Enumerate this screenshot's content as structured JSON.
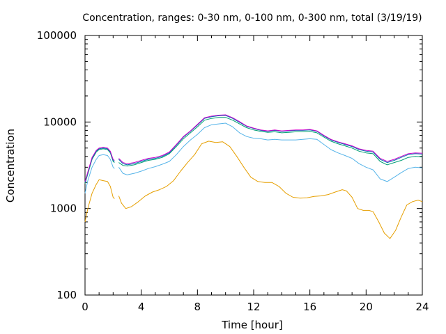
{
  "chart_data": {
    "type": "line",
    "title": "Concentration, ranges: 0-30 nm, 0-100 nm, 0-300 nm, total (3/19/19)",
    "xlabel": "Time [hour]",
    "ylabel": "Concentration",
    "xlim": [
      0,
      24
    ],
    "ylim": [
      100,
      100000
    ],
    "y_scale": "log",
    "grid": false,
    "legend": "none",
    "x_ticks": [
      "0",
      "4",
      "8",
      "12",
      "16",
      "20",
      "24"
    ],
    "y_ticks": [
      "100",
      "1000",
      "10000",
      "100000"
    ],
    "series": [
      {
        "color": "#e69f00",
        "points": [
          [
            0,
            700
          ],
          [
            0.2,
            1000
          ],
          [
            0.5,
            1500
          ],
          [
            0.8,
            1900
          ],
          [
            1.0,
            2150
          ],
          [
            1.3,
            2100
          ],
          [
            1.6,
            2050
          ],
          [
            1.8,
            1800
          ],
          [
            2.0,
            1350
          ],
          [
            2.1,
            1300
          ],
          null,
          [
            2.4,
            1400
          ],
          [
            2.6,
            1150
          ],
          [
            2.9,
            1000
          ],
          [
            3.3,
            1050
          ],
          [
            3.8,
            1200
          ],
          [
            4.3,
            1400
          ],
          [
            4.8,
            1550
          ],
          [
            5.3,
            1650
          ],
          [
            5.8,
            1800
          ],
          [
            6.3,
            2100
          ],
          [
            6.8,
            2700
          ],
          [
            7.3,
            3400
          ],
          [
            7.8,
            4200
          ],
          [
            8.3,
            5600
          ],
          [
            8.8,
            6000
          ],
          [
            9.3,
            5800
          ],
          [
            9.8,
            5900
          ],
          [
            10.3,
            5200
          ],
          [
            10.8,
            4000
          ],
          [
            11.3,
            3000
          ],
          [
            11.8,
            2300
          ],
          [
            12.3,
            2050
          ],
          [
            12.8,
            2000
          ],
          [
            13.3,
            2000
          ],
          [
            13.8,
            1800
          ],
          [
            14.3,
            1500
          ],
          [
            14.8,
            1350
          ],
          [
            15.3,
            1320
          ],
          [
            15.8,
            1330
          ],
          [
            16.3,
            1380
          ],
          [
            16.8,
            1400
          ],
          [
            17.3,
            1450
          ],
          [
            17.8,
            1550
          ],
          [
            18.3,
            1650
          ],
          [
            18.6,
            1600
          ],
          [
            19.0,
            1350
          ],
          [
            19.4,
            1000
          ],
          [
            19.8,
            950
          ],
          [
            20.2,
            950
          ],
          [
            20.5,
            920
          ],
          [
            20.9,
            700
          ],
          [
            21.3,
            520
          ],
          [
            21.7,
            450
          ],
          [
            22.1,
            560
          ],
          [
            22.5,
            800
          ],
          [
            22.9,
            1100
          ],
          [
            23.3,
            1200
          ],
          [
            23.7,
            1250
          ],
          [
            24,
            1200
          ]
        ]
      },
      {
        "color": "#56b4e9",
        "points": [
          [
            0,
            1500
          ],
          [
            0.2,
            2100
          ],
          [
            0.5,
            3000
          ],
          [
            0.8,
            3700
          ],
          [
            1.0,
            4100
          ],
          [
            1.3,
            4200
          ],
          [
            1.6,
            4100
          ],
          [
            1.8,
            3700
          ],
          [
            2.0,
            3000
          ],
          [
            2.1,
            2900
          ],
          null,
          [
            2.4,
            3000
          ],
          [
            2.7,
            2550
          ],
          [
            3.0,
            2450
          ],
          [
            3.5,
            2550
          ],
          [
            4.0,
            2700
          ],
          [
            4.5,
            2900
          ],
          [
            5.0,
            3050
          ],
          [
            5.5,
            3250
          ],
          [
            6.0,
            3500
          ],
          [
            6.5,
            4200
          ],
          [
            7.0,
            5200
          ],
          [
            7.5,
            6200
          ],
          [
            8.0,
            7200
          ],
          [
            8.5,
            8600
          ],
          [
            9.0,
            9300
          ],
          [
            9.5,
            9500
          ],
          [
            10.0,
            9700
          ],
          [
            10.5,
            8800
          ],
          [
            11.0,
            7500
          ],
          [
            11.5,
            6800
          ],
          [
            12.0,
            6500
          ],
          [
            12.5,
            6400
          ],
          [
            13.0,
            6200
          ],
          [
            13.5,
            6300
          ],
          [
            14.0,
            6200
          ],
          [
            14.5,
            6200
          ],
          [
            15.0,
            6200
          ],
          [
            15.5,
            6300
          ],
          [
            16.0,
            6400
          ],
          [
            16.5,
            6300
          ],
          [
            17.0,
            5500
          ],
          [
            17.5,
            4800
          ],
          [
            18.0,
            4400
          ],
          [
            18.5,
            4100
          ],
          [
            19.0,
            3800
          ],
          [
            19.5,
            3300
          ],
          [
            20.0,
            3000
          ],
          [
            20.5,
            2800
          ],
          [
            21.0,
            2200
          ],
          [
            21.5,
            2050
          ],
          [
            22.0,
            2300
          ],
          [
            22.5,
            2600
          ],
          [
            23.0,
            2900
          ],
          [
            23.5,
            3000
          ],
          [
            24,
            2950
          ]
        ]
      },
      {
        "color": "#009e73",
        "points": [
          [
            0,
            1950
          ],
          [
            0.2,
            2500
          ],
          [
            0.5,
            3700
          ],
          [
            0.8,
            4500
          ],
          [
            1.0,
            4800
          ],
          [
            1.3,
            4900
          ],
          [
            1.6,
            4800
          ],
          [
            1.8,
            4400
          ],
          [
            2.0,
            3500
          ],
          [
            2.1,
            3400
          ],
          null,
          [
            2.4,
            3400
          ],
          [
            2.7,
            3150
          ],
          [
            3.0,
            3100
          ],
          [
            3.5,
            3200
          ],
          [
            4.0,
            3400
          ],
          [
            4.5,
            3600
          ],
          [
            5.0,
            3700
          ],
          [
            5.5,
            3900
          ],
          [
            6.0,
            4300
          ],
          [
            6.5,
            5200
          ],
          [
            7.0,
            6400
          ],
          [
            7.5,
            7500
          ],
          [
            8.0,
            8800
          ],
          [
            8.5,
            10500
          ],
          [
            9.0,
            11000
          ],
          [
            9.5,
            11300
          ],
          [
            10.0,
            11300
          ],
          [
            10.5,
            10500
          ],
          [
            11.0,
            9500
          ],
          [
            11.5,
            8600
          ],
          [
            12.0,
            8100
          ],
          [
            12.5,
            7800
          ],
          [
            13.0,
            7600
          ],
          [
            13.5,
            7700
          ],
          [
            14.0,
            7500
          ],
          [
            14.5,
            7600
          ],
          [
            15.0,
            7700
          ],
          [
            15.5,
            7700
          ],
          [
            16.0,
            7800
          ],
          [
            16.5,
            7500
          ],
          [
            17.0,
            6700
          ],
          [
            17.5,
            6000
          ],
          [
            18.0,
            5600
          ],
          [
            18.5,
            5300
          ],
          [
            19.0,
            5000
          ],
          [
            19.5,
            4600
          ],
          [
            20.0,
            4400
          ],
          [
            20.5,
            4300
          ],
          [
            21.0,
            3500
          ],
          [
            21.5,
            3200
          ],
          [
            22.0,
            3400
          ],
          [
            22.5,
            3600
          ],
          [
            23.0,
            3900
          ],
          [
            23.5,
            4000
          ],
          [
            24,
            3950
          ]
        ]
      },
      {
        "color": "#0072b2",
        "points": [
          [
            0,
            2000
          ],
          [
            0.2,
            2600
          ],
          [
            0.5,
            3800
          ],
          [
            0.8,
            4600
          ],
          [
            1.0,
            4900
          ],
          [
            1.3,
            5000
          ],
          [
            1.6,
            4900
          ],
          [
            1.8,
            4500
          ],
          [
            2.0,
            3600
          ],
          [
            2.1,
            3500
          ],
          null,
          [
            2.4,
            3700
          ],
          [
            2.7,
            3300
          ],
          [
            3.0,
            3200
          ],
          [
            3.5,
            3300
          ],
          [
            4.0,
            3500
          ],
          [
            4.5,
            3700
          ],
          [
            5.0,
            3800
          ],
          [
            5.5,
            4000
          ],
          [
            6.0,
            4400
          ],
          [
            6.5,
            5400
          ],
          [
            7.0,
            6700
          ],
          [
            7.5,
            7800
          ],
          [
            8.0,
            9200
          ],
          [
            8.5,
            11000
          ],
          [
            9.0,
            11500
          ],
          [
            9.5,
            11800
          ],
          [
            10.0,
            11900
          ],
          [
            10.5,
            11000
          ],
          [
            11.0,
            9900
          ],
          [
            11.5,
            8900
          ],
          [
            12.0,
            8400
          ],
          [
            12.5,
            8000
          ],
          [
            13.0,
            7800
          ],
          [
            13.5,
            8000
          ],
          [
            14.0,
            7800
          ],
          [
            14.5,
            7900
          ],
          [
            15.0,
            8000
          ],
          [
            15.5,
            8000
          ],
          [
            16.0,
            8100
          ],
          [
            16.5,
            7800
          ],
          [
            17.0,
            6900
          ],
          [
            17.5,
            6200
          ],
          [
            18.0,
            5800
          ],
          [
            18.5,
            5500
          ],
          [
            19.0,
            5200
          ],
          [
            19.5,
            4800
          ],
          [
            20.0,
            4600
          ],
          [
            20.5,
            4500
          ],
          [
            21.0,
            3700
          ],
          [
            21.5,
            3400
          ],
          [
            22.0,
            3600
          ],
          [
            22.5,
            3900
          ],
          [
            23.0,
            4200
          ],
          [
            23.5,
            4300
          ],
          [
            24,
            4250
          ]
        ]
      },
      {
        "color": "#cc00cc",
        "points": [
          [
            0,
            2050
          ],
          [
            0.2,
            2650
          ],
          [
            0.5,
            3900
          ],
          [
            0.8,
            4700
          ],
          [
            1.0,
            5000
          ],
          [
            1.3,
            5100
          ],
          [
            1.6,
            5000
          ],
          [
            1.8,
            4600
          ],
          [
            2.0,
            3700
          ],
          [
            2.1,
            3600
          ],
          null,
          [
            2.4,
            3800
          ],
          [
            2.7,
            3400
          ],
          [
            3.0,
            3300
          ],
          [
            3.5,
            3400
          ],
          [
            4.0,
            3600
          ],
          [
            4.5,
            3800
          ],
          [
            5.0,
            3900
          ],
          [
            5.5,
            4100
          ],
          [
            6.0,
            4500
          ],
          [
            6.5,
            5500
          ],
          [
            7.0,
            6800
          ],
          [
            7.5,
            7900
          ],
          [
            8.0,
            9400
          ],
          [
            8.5,
            11200
          ],
          [
            9.0,
            11700
          ],
          [
            9.5,
            12000
          ],
          [
            10.0,
            12100
          ],
          [
            10.5,
            11200
          ],
          [
            11.0,
            10100
          ],
          [
            11.5,
            9000
          ],
          [
            12.0,
            8500
          ],
          [
            12.5,
            8100
          ],
          [
            13.0,
            7900
          ],
          [
            13.5,
            8100
          ],
          [
            14.0,
            7900
          ],
          [
            14.5,
            8000
          ],
          [
            15.0,
            8100
          ],
          [
            15.5,
            8100
          ],
          [
            16.0,
            8200
          ],
          [
            16.5,
            7900
          ],
          [
            17.0,
            7000
          ],
          [
            17.5,
            6300
          ],
          [
            18.0,
            5900
          ],
          [
            18.5,
            5600
          ],
          [
            19.0,
            5300
          ],
          [
            19.5,
            4900
          ],
          [
            20.0,
            4700
          ],
          [
            20.5,
            4600
          ],
          [
            21.0,
            3800
          ],
          [
            21.5,
            3500
          ],
          [
            22.0,
            3700
          ],
          [
            22.5,
            4000
          ],
          [
            23.0,
            4300
          ],
          [
            23.5,
            4400
          ],
          [
            24,
            4350
          ]
        ]
      }
    ]
  }
}
